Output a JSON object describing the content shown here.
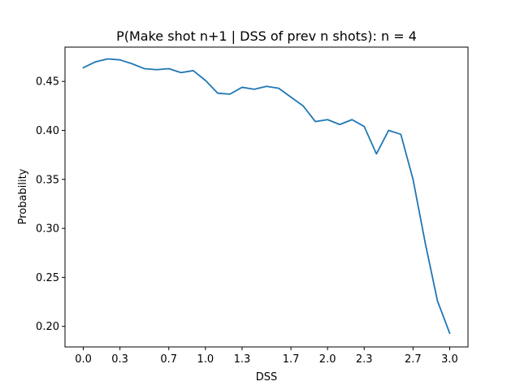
{
  "chart_data": {
    "type": "line",
    "title": "P(Make shot n+1 | DSS of prev n shots): n = 4",
    "xlabel": "DSS",
    "ylabel": "Probability",
    "xlim": [
      -0.15,
      3.15
    ],
    "ylim": [
      0.179,
      0.485
    ],
    "xticks": [
      0.0,
      0.3,
      0.7,
      1.0,
      1.3,
      1.7,
      2.0,
      2.3,
      2.7,
      3.0
    ],
    "xtick_labels": [
      "0.0",
      "0.3",
      "0.7",
      "1.0",
      "1.3",
      "1.7",
      "2.0",
      "2.3",
      "2.7",
      "3.0"
    ],
    "yticks": [
      0.2,
      0.25,
      0.3,
      0.35,
      0.4,
      0.45
    ],
    "ytick_labels": [
      "0.20",
      "0.25",
      "0.30",
      "0.35",
      "0.40",
      "0.45"
    ],
    "grid": false,
    "line_color": "#1f77b4",
    "series": [
      {
        "x": [
          0.0,
          0.1,
          0.2,
          0.3,
          0.4,
          0.5,
          0.6,
          0.7,
          0.8,
          0.9,
          1.0,
          1.1,
          1.2,
          1.3,
          1.4,
          1.5,
          1.6,
          1.7,
          1.8,
          1.9,
          2.0,
          2.1,
          2.2,
          2.3,
          2.4,
          2.5,
          2.6,
          2.7,
          2.8,
          2.9,
          3.0
        ],
        "y": [
          0.464,
          0.47,
          0.473,
          0.472,
          0.468,
          0.463,
          0.462,
          0.463,
          0.459,
          0.461,
          0.451,
          0.438,
          0.437,
          0.444,
          0.442,
          0.445,
          0.443,
          0.434,
          0.425,
          0.409,
          0.411,
          0.406,
          0.411,
          0.404,
          0.376,
          0.4,
          0.396,
          0.35,
          0.285,
          0.226,
          0.193
        ]
      }
    ]
  }
}
